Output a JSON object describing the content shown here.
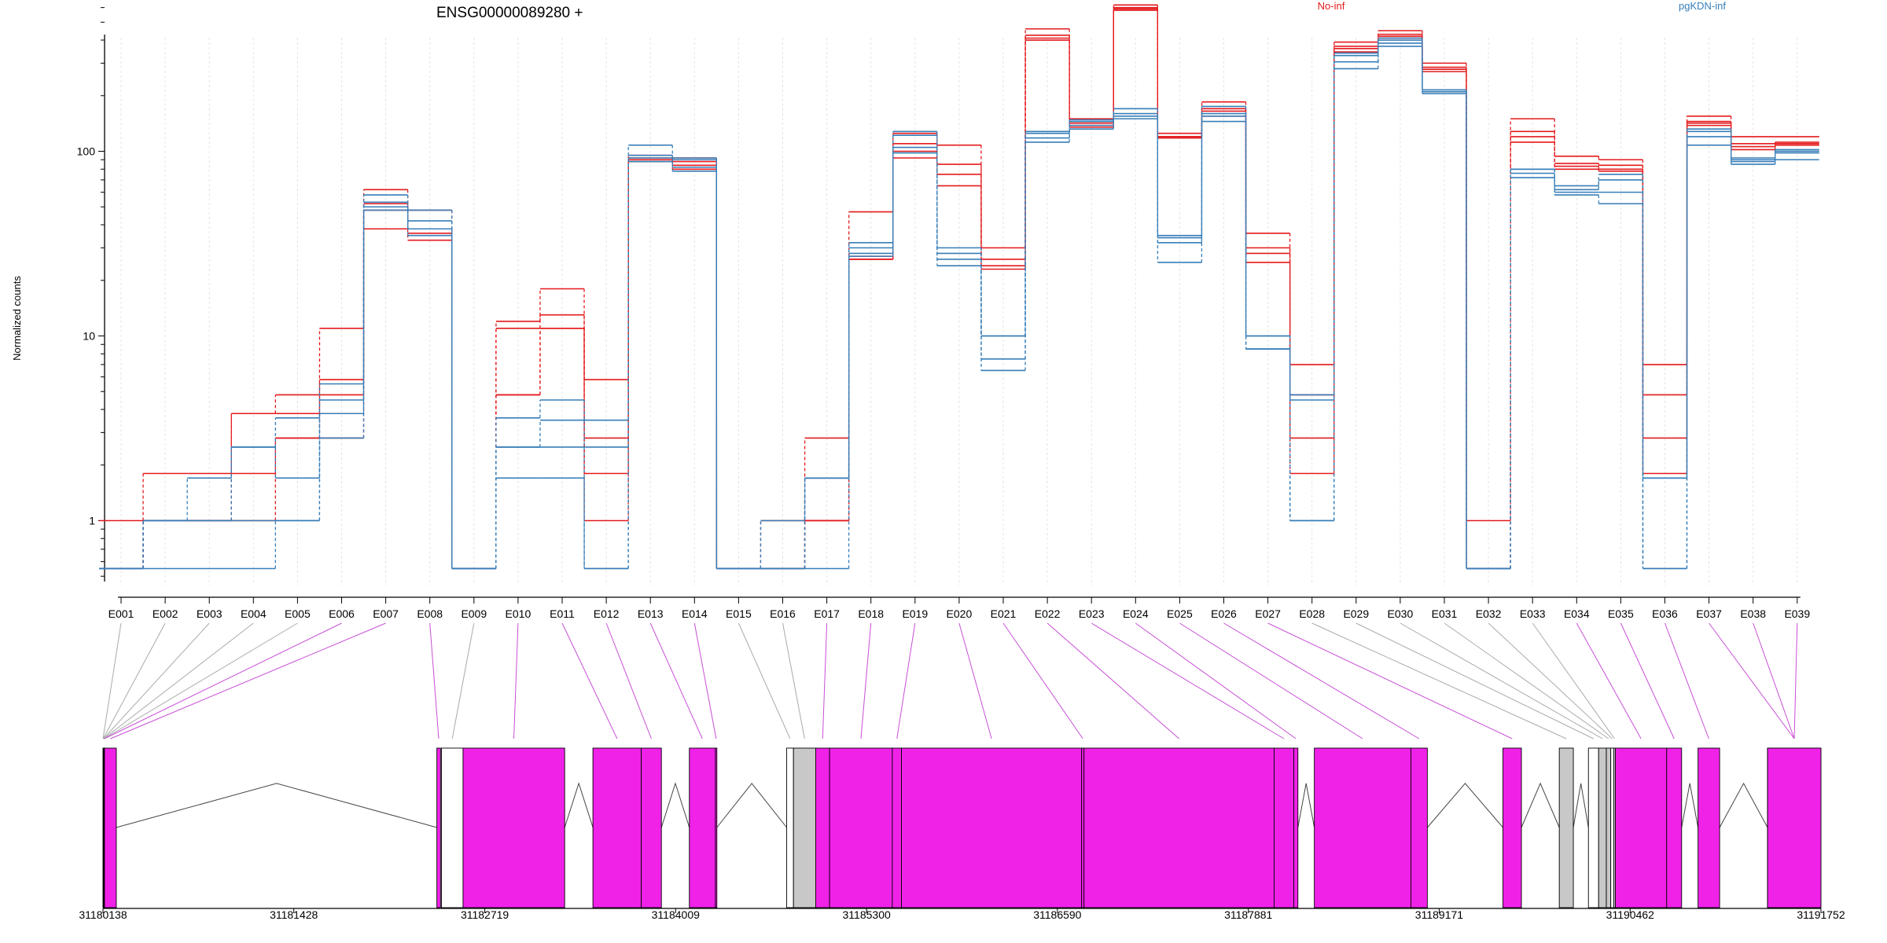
{
  "gene": {
    "title": "ENSG00000089280 +"
  },
  "legend": [
    {
      "label": "No-inf",
      "color": "#e41a1c"
    },
    {
      "label": "pgKDN-inf",
      "color": "#377eb8"
    }
  ],
  "colors": {
    "no_inf": "#e41a1c",
    "pgkdn_inf": "#377eb8",
    "exon_fill": "#f022e8",
    "exon_gray": "#c8c8c8",
    "connector_gray": "#aaaaaa",
    "connector_magenta": "#c84fd6",
    "grid": "#e4e4e4"
  },
  "chart_data": {
    "type": "line",
    "ylabel": "Normalized counts",
    "y_scale": "log",
    "ylim": [
      0.5,
      800
    ],
    "y_ticks": [
      1,
      10,
      100
    ],
    "grid": "vertical",
    "legend_position": "top",
    "categories": [
      "E001",
      "E002",
      "E003",
      "E004",
      "E005",
      "E006",
      "E007",
      "E008",
      "E009",
      "E010",
      "E011",
      "E012",
      "E013",
      "E014",
      "E015",
      "E016",
      "E017",
      "E018",
      "E019",
      "E020",
      "E021",
      "E022",
      "E023",
      "E024",
      "E025",
      "E026",
      "E027",
      "E028",
      "E029",
      "E030",
      "E031",
      "E032",
      "E033",
      "E034",
      "E035",
      "E036",
      "E037",
      "E038",
      "E039"
    ],
    "series": [
      {
        "name": "No-inf",
        "values": [
          1,
          1.8,
          1.8,
          3.8,
          4.8,
          11,
          62,
          48,
          0.55,
          12,
          18,
          5.8,
          95,
          92,
          0.55,
          1,
          2.8,
          47,
          125,
          108,
          30,
          460,
          150,
          620,
          125,
          185,
          36,
          7,
          390,
          450,
          300,
          1,
          150,
          94,
          90,
          7,
          155,
          120,
          120
        ]
      },
      {
        "name": "No-inf",
        "values": [
          0.55,
          1,
          1,
          1,
          2.8,
          2.8,
          38,
          33,
          0.55,
          4.8,
          11,
          1,
          88,
          80,
          0.55,
          0.55,
          1,
          26,
          92,
          65,
          23,
          400,
          135,
          580,
          118,
          155,
          25,
          1.8,
          345,
          410,
          270,
          0.55,
          112,
          80,
          78,
          1.8,
          138,
          102,
          108
        ]
      },
      {
        "name": "No-inf",
        "values": [
          0.55,
          1,
          1,
          1.8,
          2.8,
          4.8,
          52,
          38,
          0.55,
          11,
          13,
          2.8,
          92,
          88,
          0.55,
          0.55,
          1,
          27,
          110,
          85,
          26,
          425,
          142,
          600,
          120,
          170,
          30,
          4.8,
          370,
          430,
          285,
          0.55,
          128,
          86,
          84,
          4.8,
          145,
          110,
          112
        ]
      },
      {
        "name": "No-inf",
        "values": [
          0.55,
          1,
          1,
          3.8,
          3.8,
          5.8,
          48,
          36,
          0.55,
          4.8,
          11,
          1.8,
          90,
          84,
          0.55,
          0.55,
          1,
          26,
          100,
          75,
          24,
          410,
          138,
          590,
          120,
          165,
          28,
          2.8,
          360,
          420,
          278,
          0.55,
          120,
          83,
          80,
          2.8,
          142,
          106,
          110
        ]
      },
      {
        "name": "pgKDN-inf",
        "values": [
          0.55,
          0.55,
          0.55,
          0.55,
          1,
          2.8,
          50,
          42,
          0.55,
          3.6,
          4.5,
          3.5,
          95,
          90,
          0.55,
          0.55,
          1.7,
          30,
          122,
          30,
          10,
          125,
          148,
          170,
          35,
          175,
          10,
          4.8,
          330,
          400,
          215,
          0.55,
          80,
          65,
          75,
          1.7,
          128,
          90,
          100
        ]
      },
      {
        "name": "pgKDN-inf",
        "values": [
          0.55,
          1,
          1,
          2.5,
          1.7,
          4.5,
          53,
          38,
          0.55,
          2.5,
          2.5,
          0.55,
          88,
          82,
          0.55,
          0.55,
          0.55,
          27,
          105,
          28,
          7.5,
          118,
          138,
          155,
          34,
          155,
          8.5,
          1,
          305,
          385,
          210,
          0.55,
          76,
          60,
          60,
          0.55,
          120,
          88,
          98
        ]
      },
      {
        "name": "pgKDN-inf",
        "values": [
          0.55,
          1,
          1,
          1,
          1,
          3.8,
          48,
          35,
          0.55,
          1.7,
          1.7,
          0.55,
          92,
          78,
          0.55,
          1,
          1.7,
          28,
          98,
          26,
          6.5,
          112,
          132,
          150,
          25,
          145,
          8.5,
          1,
          280,
          370,
          205,
          0.55,
          72,
          58,
          52,
          0.55,
          108,
          85,
          90
        ]
      },
      {
        "name": "pgKDN-inf",
        "values": [
          0.55,
          1,
          1.7,
          2.5,
          3.6,
          5.5,
          58,
          48,
          0.55,
          2.5,
          3.5,
          2.5,
          108,
          92,
          0.55,
          0.55,
          1.7,
          32,
          128,
          24,
          10,
          128,
          145,
          160,
          32,
          160,
          10,
          4.5,
          340,
          410,
          215,
          0.55,
          80,
          62,
          70,
          1.7,
          132,
          92,
          102
        ]
      }
    ],
    "exon_map": {
      "genomic_ticks": [
        "31180138",
        "31181428",
        "31182719",
        "31184009",
        "31185300",
        "31186590",
        "31187881",
        "31189171",
        "31190462",
        "31191752"
      ],
      "xlim": [
        31180138,
        31191752
      ],
      "exons": [
        {
          "id": "E001",
          "start": 31180138,
          "end": 31180138,
          "fill": "white"
        },
        {
          "id": "E002",
          "start": 31180138,
          "end": 31180140,
          "fill": "white"
        },
        {
          "id": "E003",
          "start": 31180140,
          "end": 31180142,
          "fill": "white"
        },
        {
          "id": "E004",
          "start": 31180142,
          "end": 31180144,
          "fill": "white"
        },
        {
          "id": "E005",
          "start": 31180144,
          "end": 31180146,
          "fill": "white"
        },
        {
          "id": "E006",
          "start": 31180146,
          "end": 31180148,
          "fill": "magenta"
        },
        {
          "id": "E007",
          "start": 31180148,
          "end": 31180228,
          "fill": "magenta"
        },
        {
          "id": "E008",
          "start": 31182395,
          "end": 31182420,
          "fill": "magenta"
        },
        {
          "id": "E009",
          "start": 31182426,
          "end": 31182572,
          "fill": "white"
        },
        {
          "id": "E010",
          "start": 31182572,
          "end": 31183259,
          "fill": "magenta"
        },
        {
          "id": "E011",
          "start": 31183450,
          "end": 31183777,
          "fill": "magenta"
        },
        {
          "id": "E012",
          "start": 31183777,
          "end": 31183913,
          "fill": "magenta"
        },
        {
          "id": "E013",
          "start": 31184102,
          "end": 31184278,
          "fill": "magenta"
        },
        {
          "id": "E014",
          "start": 31184278,
          "end": 31184288,
          "fill": "magenta"
        },
        {
          "id": "E015",
          "start": 31184760,
          "end": 31184806,
          "fill": "white"
        },
        {
          "id": "E016",
          "start": 31184806,
          "end": 31184956,
          "fill": "gray"
        },
        {
          "id": "E017",
          "start": 31184956,
          "end": 31185050,
          "fill": "magenta"
        },
        {
          "id": "E018",
          "start": 31185050,
          "end": 31185474,
          "fill": "magenta"
        },
        {
          "id": "E019",
          "start": 31185474,
          "end": 31185536,
          "fill": "magenta"
        },
        {
          "id": "E020",
          "start": 31185536,
          "end": 31186754,
          "fill": "magenta"
        },
        {
          "id": "E021",
          "start": 31186754,
          "end": 31186770,
          "fill": "magenta"
        },
        {
          "id": "E022",
          "start": 31186770,
          "end": 31188055,
          "fill": "magenta"
        },
        {
          "id": "E023",
          "start": 31188055,
          "end": 31188188,
          "fill": "magenta"
        },
        {
          "id": "E024",
          "start": 31188188,
          "end": 31188216,
          "fill": "magenta"
        },
        {
          "id": "E025",
          "start": 31188327,
          "end": 31188980,
          "fill": "magenta"
        },
        {
          "id": "E026",
          "start": 31188980,
          "end": 31189091,
          "fill": "magenta"
        },
        {
          "id": "E027",
          "start": 31189602,
          "end": 31189727,
          "fill": "magenta"
        },
        {
          "id": "E028",
          "start": 31189983,
          "end": 31190078,
          "fill": "gray"
        },
        {
          "id": "E029",
          "start": 31190180,
          "end": 31190249,
          "fill": "white"
        },
        {
          "id": "E030",
          "start": 31190249,
          "end": 31190301,
          "fill": "gray"
        },
        {
          "id": "E031",
          "start": 31190301,
          "end": 31190331,
          "fill": "gray"
        },
        {
          "id": "E032",
          "start": 31190331,
          "end": 31190351,
          "fill": "white"
        },
        {
          "id": "E033",
          "start": 31190351,
          "end": 31190362,
          "fill": "gray"
        },
        {
          "id": "E034",
          "start": 31190362,
          "end": 31190709,
          "fill": "magenta"
        },
        {
          "id": "E035",
          "start": 31190709,
          "end": 31190810,
          "fill": "magenta"
        },
        {
          "id": "E036",
          "start": 31190921,
          "end": 31191067,
          "fill": "magenta"
        },
        {
          "id": "E037",
          "start": 31191391,
          "end": 31191752,
          "fill": "magenta"
        },
        {
          "id": "E038",
          "start": 31191391,
          "end": 31191752,
          "fill": "magenta"
        },
        {
          "id": "E039",
          "start": 31191391,
          "end": 31191752,
          "fill": "magenta"
        }
      ]
    }
  }
}
